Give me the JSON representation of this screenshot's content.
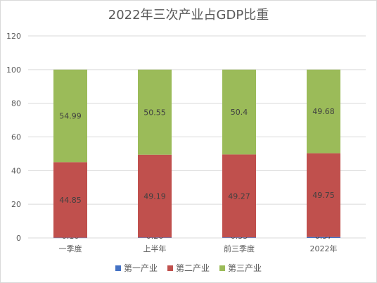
{
  "chart_data": {
    "type": "bar",
    "stacked": true,
    "title": "2022年三次产业占GDP比重",
    "categories": [
      "一季度",
      "上半年",
      "前三季度",
      "2022年"
    ],
    "series": [
      {
        "name": "第一产业",
        "color": "#4472c4",
        "values": [
          0.16,
          0.26,
          0.33,
          0.57
        ]
      },
      {
        "name": "第二产业",
        "color": "#c0504d",
        "values": [
          44.85,
          49.19,
          49.27,
          49.75
        ]
      },
      {
        "name": "第三产业",
        "color": "#9bbb59",
        "values": [
          54.99,
          50.55,
          50.4,
          49.68
        ]
      }
    ],
    "ylim": [
      0,
      120
    ],
    "yticks": [
      0,
      20,
      40,
      60,
      80,
      100,
      120
    ],
    "grid": true,
    "legend": "bottom"
  }
}
